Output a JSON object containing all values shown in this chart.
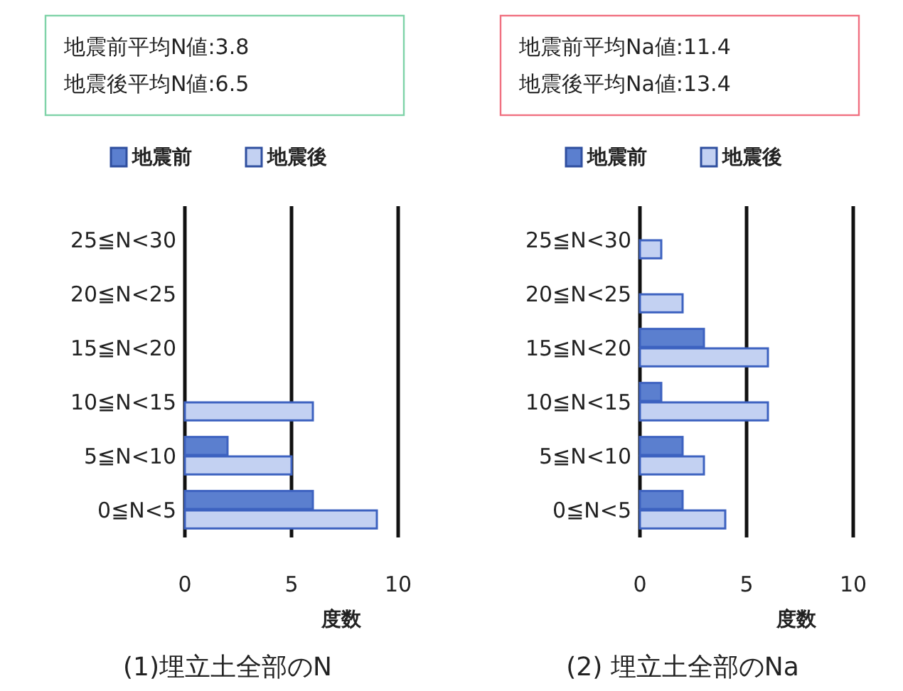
{
  "chart_data": [
    {
      "type": "bar",
      "orientation": "horizontal",
      "title": "(1)埋立土全部のN",
      "xlabel": "度数",
      "annotations": [
        "地震前平均N値:3.8",
        "地震後平均N値:6.5"
      ],
      "categories": [
        "25≦N<30",
        "20≦N<25",
        "15≦N<20",
        "10≦N<15",
        "5≦N<10",
        "0≦N<5"
      ],
      "series": [
        {
          "name": "地震前",
          "color": "#5b7fcf",
          "values": [
            0,
            0,
            0,
            0,
            2,
            6
          ]
        },
        {
          "name": "地震後",
          "color": "#c3d1f2",
          "values": [
            0,
            0,
            0,
            6,
            5,
            9
          ]
        }
      ],
      "xlim": [
        0,
        10
      ],
      "xticks": [
        0,
        5,
        10
      ],
      "grid": "x",
      "legend": "top"
    },
    {
      "type": "bar",
      "orientation": "horizontal",
      "title": "(2) 埋立土全部のNa",
      "xlabel": "度数",
      "annotations": [
        "地震前平均Na値:11.4",
        "地震後平均Na値:13.4"
      ],
      "categories": [
        "25≦N<30",
        "20≦N<25",
        "15≦N<20",
        "10≦N<15",
        "5≦N<10",
        "0≦N<5"
      ],
      "series": [
        {
          "name": "地震前",
          "color": "#5b7fcf",
          "values": [
            0,
            0,
            3,
            1,
            2,
            2
          ]
        },
        {
          "name": "地震後",
          "color": "#c3d1f2",
          "values": [
            1,
            2,
            6,
            6,
            3,
            4
          ]
        }
      ],
      "xlim": [
        0,
        10
      ],
      "xticks": [
        0,
        5,
        10
      ],
      "grid": "x",
      "legend": "top"
    }
  ]
}
